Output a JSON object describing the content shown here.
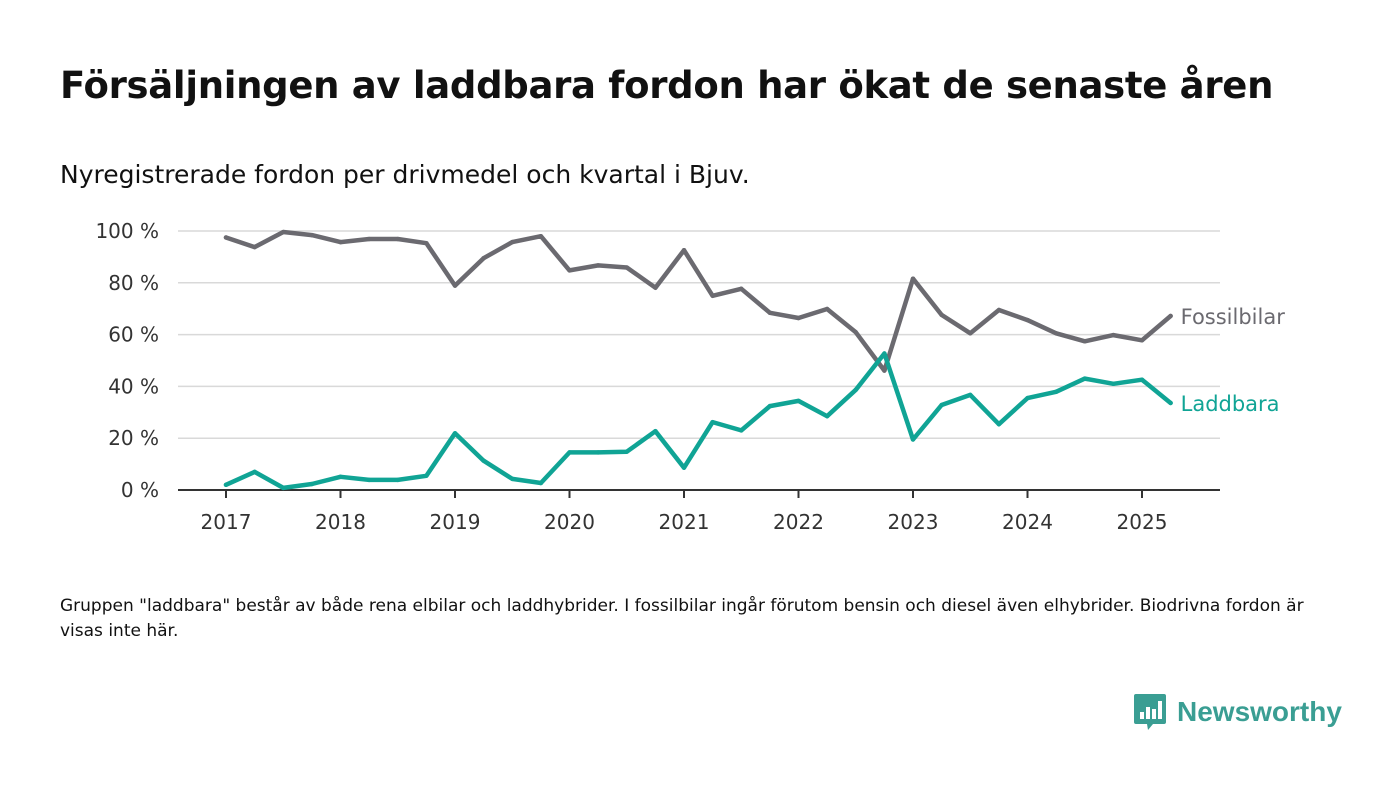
{
  "title": "Försäljningen av laddbara fordon har ökat de senaste åren",
  "subtitle": "Nyregistrerade fordon per drivmedel och kvartal i Bjuv.",
  "note": "Gruppen \"laddbara\" består av både rena elbilar och laddhybrider. I fossilbilar ingår förutom bensin och diesel även elhybrider. Biodrivna fordon är visas inte här.",
  "brand": {
    "name": "Newsworthy",
    "color": "#3a9e93",
    "icon": "newsworthy-logo-icon"
  },
  "chart_data": {
    "type": "line",
    "title": "",
    "xlabel": "",
    "ylabel": "",
    "x_unit": "year-quarter",
    "ylim": [
      0,
      100
    ],
    "y_ticks": [
      0,
      20,
      40,
      60,
      80,
      100
    ],
    "y_tick_labels": [
      "0 %",
      "20 %",
      "40 %",
      "60 %",
      "80 %",
      "100 %"
    ],
    "x_ticks": [
      2017,
      2018,
      2019,
      2020,
      2021,
      2022,
      2023,
      2024,
      2025
    ],
    "x_tick_labels": [
      "2017",
      "2018",
      "2019",
      "2020",
      "2021",
      "2022",
      "2023",
      "2024",
      "2025"
    ],
    "x": [
      "2017 Q1",
      "2017 Q2",
      "2017 Q3",
      "2017 Q4",
      "2018 Q1",
      "2018 Q2",
      "2018 Q3",
      "2018 Q4",
      "2019 Q1",
      "2019 Q2",
      "2019 Q3",
      "2019 Q4",
      "2020 Q1",
      "2020 Q2",
      "2020 Q3",
      "2020 Q4",
      "2021 Q1",
      "2021 Q2",
      "2021 Q3",
      "2021 Q4",
      "2022 Q1",
      "2022 Q2",
      "2022 Q3",
      "2022 Q4",
      "2023 Q1",
      "2023 Q2",
      "2023 Q3",
      "2023 Q4",
      "2024 Q1",
      "2024 Q2",
      "2024 Q3",
      "2024 Q4",
      "2025 Q1",
      "2025 Q2"
    ],
    "grid": true,
    "legend": "direct labels at line ends (right)",
    "series": [
      {
        "name": "Fossilbilar",
        "color": "#6b6a70",
        "values": [
          97.5,
          93.8,
          99.6,
          98.4,
          95.7,
          96.9,
          96.9,
          95.3,
          78.9,
          89.5,
          95.7,
          98.0,
          84.8,
          86.7,
          85.9,
          78.1,
          92.6,
          75.0,
          77.7,
          68.4,
          66.4,
          69.9,
          60.9,
          46.1,
          81.6,
          67.6,
          60.5,
          69.5,
          65.6,
          60.5,
          57.4,
          59.8,
          57.8,
          67.2
        ]
      },
      {
        "name": "Laddbara",
        "color": "#10a495",
        "values": [
          2.0,
          7.0,
          0.8,
          2.3,
          5.1,
          3.9,
          3.9,
          5.5,
          21.9,
          11.3,
          4.3,
          2.7,
          14.5,
          14.5,
          14.8,
          22.7,
          8.6,
          26.2,
          23.0,
          32.4,
          34.4,
          28.5,
          38.7,
          52.7,
          19.5,
          32.8,
          36.7,
          25.4,
          35.5,
          37.9,
          43.0,
          41.0,
          42.6,
          33.6
        ]
      }
    ]
  }
}
